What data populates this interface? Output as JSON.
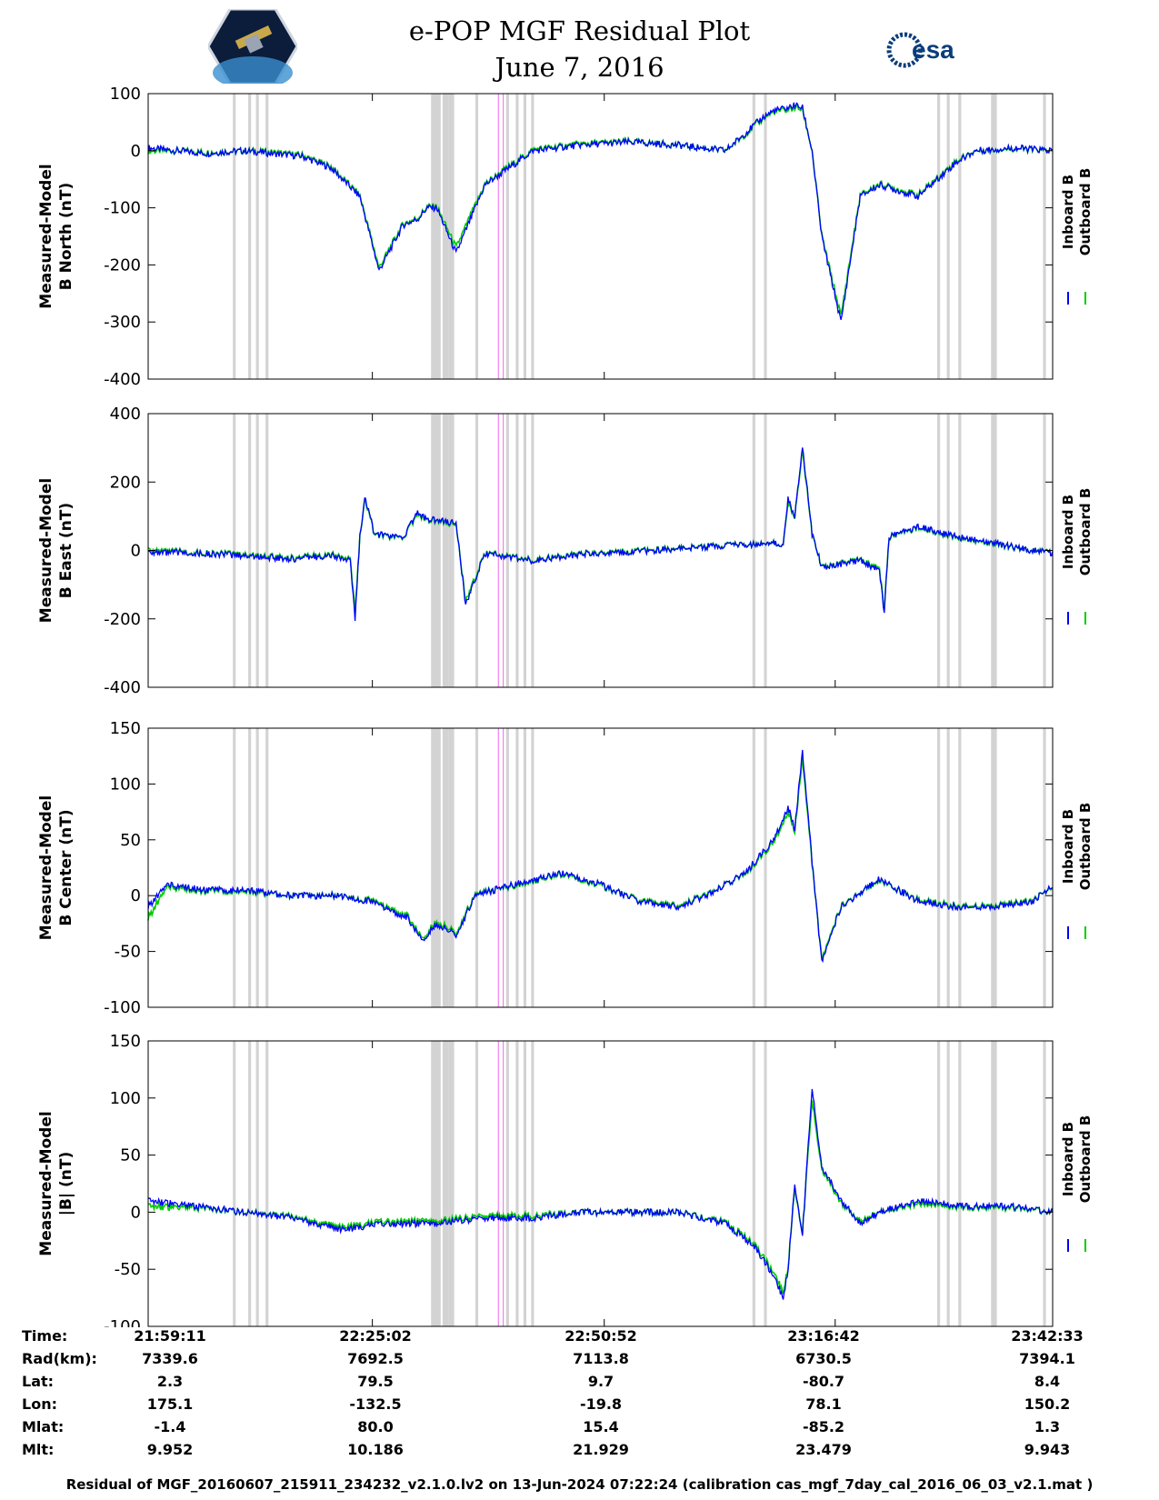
{
  "header": {
    "title": "e-POP MGF Residual Plot",
    "date": "June 7, 2016",
    "logo_left": "CASSIOPE",
    "logo_right": "esa"
  },
  "legend": {
    "inboard": "Inboard B",
    "outboard": "Outboard B",
    "inboard_color": "#0000ff",
    "outboard_color": "#00cc00"
  },
  "colors": {
    "inboard": "#0000ff",
    "outboard": "#00cc00",
    "gap_band": "#d3d3d3",
    "marker": "#ee82ee"
  },
  "chart_data": [
    {
      "type": "line",
      "ylabel_line1": "Measured-Model",
      "ylabel_line2": "B North (nT)",
      "ylim": [
        -400,
        100
      ],
      "yticks": [
        100,
        0,
        -100,
        -200,
        -300,
        -400
      ],
      "x": [
        0,
        10,
        30,
        60,
        80,
        100,
        130,
        160,
        190,
        220,
        240,
        265,
        280,
        290,
        300,
        320,
        350,
        400,
        450,
        500,
        550,
        600,
        620,
        640,
        650,
        665,
        672,
        680,
        690,
        700,
        720,
        740,
        760,
        800,
        840,
        860,
        900,
        940
      ],
      "series": [
        {
          "name": "Inboard B",
          "values": [
            5,
            3,
            0,
            -5,
            -2,
            0,
            -5,
            -10,
            -30,
            -80,
            -210,
            -130,
            -120,
            -100,
            -100,
            -180,
            -60,
            0,
            10,
            15,
            10,
            0,
            30,
            60,
            70,
            75,
            80,
            75,
            0,
            -150,
            -300,
            -80,
            -60,
            -80,
            -20,
            0,
            5,
            0
          ]
        },
        {
          "name": "Outboard B",
          "values": [
            0,
            0,
            0,
            -3,
            -2,
            0,
            -3,
            -8,
            -28,
            -78,
            -205,
            -128,
            -118,
            -98,
            -98,
            -170,
            -58,
            2,
            12,
            16,
            10,
            0,
            28,
            58,
            68,
            72,
            76,
            72,
            0,
            -148,
            -290,
            -78,
            -58,
            -78,
            -18,
            0,
            4,
            0
          ]
        }
      ]
    },
    {
      "type": "line",
      "ylabel_line1": "Measured-Model",
      "ylabel_line2": "B East (nT)",
      "ylim": [
        -400,
        400
      ],
      "yticks": [
        400,
        200,
        0,
        -200,
        -400
      ],
      "x": [
        0,
        10,
        30,
        60,
        100,
        150,
        190,
        210,
        215,
        220,
        225,
        235,
        250,
        265,
        280,
        290,
        300,
        320,
        330,
        350,
        380,
        400,
        450,
        500,
        550,
        600,
        640,
        660,
        665,
        672,
        680,
        690,
        700,
        740,
        760,
        765,
        770,
        800,
        840,
        880,
        900,
        930,
        940
      ],
      "series": [
        {
          "name": "Inboard B",
          "values": [
            0,
            -10,
            -5,
            -10,
            -15,
            -25,
            -15,
            -30,
            -200,
            40,
            160,
            50,
            40,
            40,
            110,
            90,
            90,
            80,
            -160,
            -10,
            -20,
            -30,
            -10,
            -5,
            5,
            15,
            20,
            20,
            150,
            100,
            300,
            50,
            -50,
            -30,
            -60,
            -180,
            40,
            70,
            40,
            20,
            10,
            -5,
            -10
          ]
        },
        {
          "name": "Outboard B",
          "values": [
            8,
            -5,
            -3,
            -8,
            -12,
            -22,
            -12,
            -26,
            -180,
            38,
            155,
            48,
            38,
            38,
            105,
            88,
            88,
            76,
            -150,
            -8,
            -18,
            -28,
            -8,
            -3,
            6,
            16,
            20,
            20,
            140,
            98,
            290,
            48,
            -48,
            -28,
            -55,
            -170,
            38,
            68,
            38,
            18,
            9,
            -4,
            -9
          ]
        }
      ]
    },
    {
      "type": "line",
      "ylabel_line1": "Measured-Model",
      "ylabel_line2": "B Center (nT)",
      "ylim": [
        -100,
        150
      ],
      "yticks": [
        150,
        100,
        50,
        0,
        -50,
        -100
      ],
      "x": [
        0,
        20,
        60,
        100,
        150,
        200,
        230,
        270,
        285,
        300,
        320,
        340,
        380,
        430,
        470,
        510,
        550,
        580,
        620,
        650,
        665,
        672,
        680,
        690,
        700,
        720,
        760,
        800,
        840,
        880,
        920,
        940
      ],
      "series": [
        {
          "name": "Inboard B",
          "values": [
            -10,
            10,
            5,
            5,
            0,
            0,
            -5,
            -20,
            -40,
            -25,
            -35,
            0,
            10,
            20,
            10,
            -5,
            -10,
            0,
            20,
            50,
            80,
            60,
            130,
            30,
            -60,
            -10,
            15,
            -5,
            -10,
            -10,
            -5,
            10
          ]
        },
        {
          "name": "Outboard B",
          "values": [
            -20,
            8,
            4,
            4,
            0,
            0,
            -4,
            -18,
            -38,
            -23,
            -33,
            1,
            9,
            19,
            9,
            -4,
            -9,
            1,
            19,
            48,
            76,
            58,
            124,
            28,
            -58,
            -9,
            14,
            -4,
            -9,
            -9,
            -4,
            9
          ]
        }
      ]
    },
    {
      "type": "line",
      "ylabel_line1": "Measured-Model",
      "ylabel_line2": "|B| (nT)",
      "ylim": [
        -100,
        150
      ],
      "yticks": [
        150,
        100,
        50,
        0,
        -50,
        -100
      ],
      "x": [
        0,
        50,
        100,
        150,
        200,
        250,
        300,
        350,
        400,
        450,
        500,
        550,
        600,
        630,
        650,
        660,
        665,
        672,
        680,
        690,
        700,
        720,
        740,
        760,
        800,
        850,
        900,
        940
      ],
      "series": [
        {
          "name": "Inboard B",
          "values": [
            10,
            5,
            0,
            -5,
            -15,
            -10,
            -10,
            -5,
            -5,
            0,
            0,
            0,
            -10,
            -30,
            -55,
            -75,
            -50,
            25,
            -20,
            110,
            40,
            10,
            -10,
            0,
            10,
            5,
            5,
            0
          ]
        },
        {
          "name": "Outboard B",
          "values": [
            5,
            4,
            0,
            -4,
            -13,
            -8,
            -8,
            -3,
            -3,
            0,
            0,
            0,
            -9,
            -28,
            -52,
            -70,
            -48,
            22,
            -18,
            100,
            38,
            8,
            -8,
            0,
            8,
            4,
            4,
            0
          ]
        }
      ]
    }
  ],
  "time_axis": {
    "labels": [
      "Time:",
      "Rad(km):",
      "Lat:",
      "Lon:",
      "Mlat:",
      "Mlt:"
    ],
    "columns": [
      [
        "21:59:11",
        "7339.6",
        "2.3",
        "175.1",
        "-1.4",
        "9.952"
      ],
      [
        "22:25:02",
        "7692.5",
        "79.5",
        "-132.5",
        "80.0",
        "10.186"
      ],
      [
        "22:50:52",
        "7113.8",
        "9.7",
        "-19.8",
        "15.4",
        "21.929"
      ],
      [
        "23:16:42",
        "6730.5",
        "-80.7",
        "78.1",
        "-85.2",
        "23.479"
      ],
      [
        "23:42:33",
        "7394.1",
        "8.4",
        "150.2",
        "1.3",
        "9.943"
      ]
    ]
  },
  "footer": "Residual of MGF_20160607_215911_234232_v2.1.0.lv2 on 13-Jun-2024 07:22:24 (calibration cas_mgf_7day_cal_2016_06_03_v2.1.mat )"
}
